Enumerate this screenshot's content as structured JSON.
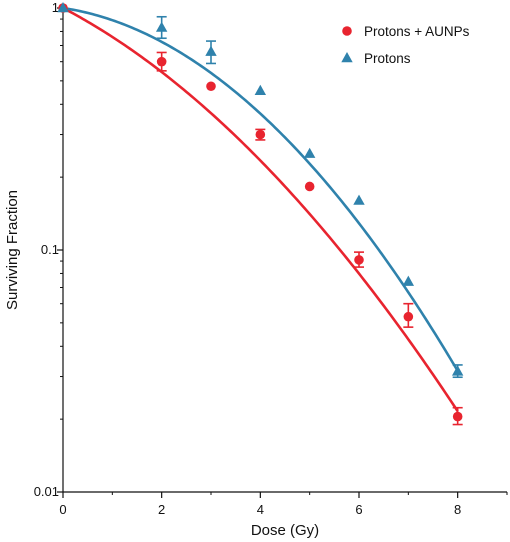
{
  "chart_data": {
    "type": "scatter",
    "xlabel": "Dose (Gy)",
    "ylabel": "Surviving Fraction",
    "xlim": [
      0,
      9
    ],
    "ylim": [
      0.01,
      1
    ],
    "yscale": "log",
    "x_ticks": [
      0,
      2,
      4,
      6,
      8
    ],
    "x_tick_labels": [
      "0",
      "2",
      "4",
      "6",
      "8"
    ],
    "y_ticks": [
      0.01,
      0.1,
      1
    ],
    "y_tick_labels": [
      "0.01",
      "0.1",
      "1"
    ],
    "grid": false,
    "legend_position": "top-right",
    "series": [
      {
        "name": "Protons + AUNPs",
        "marker": "circle",
        "color": "#e8242f",
        "x": [
          0,
          2,
          3,
          4,
          5,
          6,
          7,
          8
        ],
        "y": [
          1.0,
          0.6,
          0.475,
          0.3,
          0.183,
          0.091,
          0.053,
          0.0205
        ],
        "err_low": [
          null,
          0.55,
          null,
          0.285,
          null,
          0.085,
          0.048,
          0.019
        ],
        "err_high": [
          null,
          0.655,
          null,
          0.315,
          null,
          0.098,
          0.06,
          0.0223
        ],
        "fit": {
          "model": "linear-quadratic",
          "alpha": 0.246,
          "beta": 0.0292
        }
      },
      {
        "name": "Protons",
        "marker": "triangle",
        "color": "#2f82ac",
        "x": [
          0,
          2,
          3,
          4,
          5,
          6,
          7,
          8
        ],
        "y": [
          1.0,
          0.83,
          0.66,
          0.455,
          0.25,
          0.16,
          0.074,
          0.0315
        ],
        "err_low": [
          null,
          0.75,
          0.59,
          null,
          null,
          null,
          null,
          0.0298
        ],
        "err_high": [
          null,
          0.92,
          0.73,
          null,
          null,
          null,
          null,
          0.0335
        ],
        "fit": {
          "model": "linear-quadratic",
          "alpha": 0.0708,
          "beta": 0.0451
        }
      }
    ]
  }
}
